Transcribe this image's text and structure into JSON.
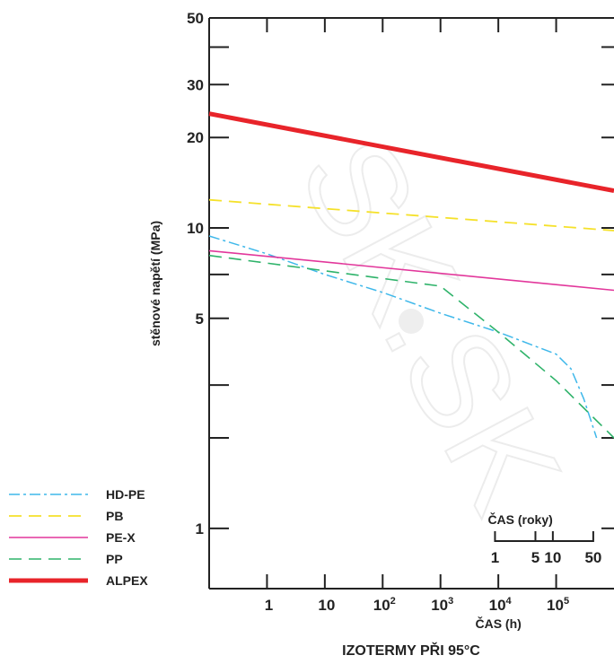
{
  "chart_data": {
    "type": "line",
    "title": "IZOTERMY PŘI 95°C",
    "ylabel": "stěnové napětí (MPa)",
    "xlabel": "ČAS (h)",
    "secondary_xlabel": "ČAS (roky)",
    "yscale": "log",
    "xscale": "log",
    "ylim": [
      0.63,
      50
    ],
    "xlim": [
      0.1,
      1000000
    ],
    "y_ticks": [
      {
        "value": 50,
        "label": "50"
      },
      {
        "value": 30,
        "label": "30"
      },
      {
        "value": 20,
        "label": "20"
      },
      {
        "value": 10,
        "label": "10"
      },
      {
        "value": 5,
        "label": "5"
      },
      {
        "value": 1,
        "label": "1"
      }
    ],
    "y_minor_ticks": [
      40,
      7,
      3,
      2
    ],
    "x_ticks": [
      {
        "value": 1,
        "base": "1",
        "exp": ""
      },
      {
        "value": 10,
        "base": "10",
        "exp": ""
      },
      {
        "value": 100,
        "base": "10",
        "exp": "2"
      },
      {
        "value": 1000,
        "base": "10",
        "exp": "3"
      },
      {
        "value": 10000,
        "base": "10",
        "exp": "4"
      },
      {
        "value": 100000,
        "base": "10",
        "exp": "5"
      }
    ],
    "years_scale": {
      "labels": [
        "1",
        "5",
        "10",
        "50"
      ],
      "hours": [
        8760,
        43800,
        87600,
        438000
      ]
    },
    "legend_position": "bottom-left",
    "series": [
      {
        "name": "HD-PE",
        "color": "#3fb8ea",
        "style": "dashdot",
        "width": 1.5,
        "points": [
          [
            0.1,
            9.4
          ],
          [
            1,
            8.2
          ],
          [
            10,
            7
          ],
          [
            100,
            6.1
          ],
          [
            1000,
            5.2
          ],
          [
            10000,
            4.5
          ],
          [
            100000,
            3.8
          ],
          [
            180000,
            3.4
          ],
          [
            300000,
            2.7
          ],
          [
            500000,
            2
          ]
        ]
      },
      {
        "name": "PB",
        "color": "#f5e12a",
        "style": "dash",
        "width": 1.8,
        "points": [
          [
            0.1,
            12.4
          ],
          [
            1000000,
            9.8
          ]
        ]
      },
      {
        "name": "PE-X",
        "color": "#e2379b",
        "style": "solid",
        "width": 1.6,
        "points": [
          [
            0.1,
            8.4
          ],
          [
            1000000,
            6.2
          ]
        ]
      },
      {
        "name": "PP",
        "color": "#2fb36a",
        "style": "dash",
        "width": 1.6,
        "points": [
          [
            0.1,
            8.1
          ],
          [
            1000,
            6.4
          ],
          [
            10000,
            4.5
          ],
          [
            100000,
            3.1
          ],
          [
            1000000,
            2
          ]
        ]
      },
      {
        "name": "ALPEX",
        "color": "#e8242a",
        "style": "solid",
        "width": 5,
        "points": [
          [
            0.1,
            24
          ],
          [
            1000000,
            13.3
          ]
        ]
      }
    ],
    "watermark": "SK.SK"
  }
}
